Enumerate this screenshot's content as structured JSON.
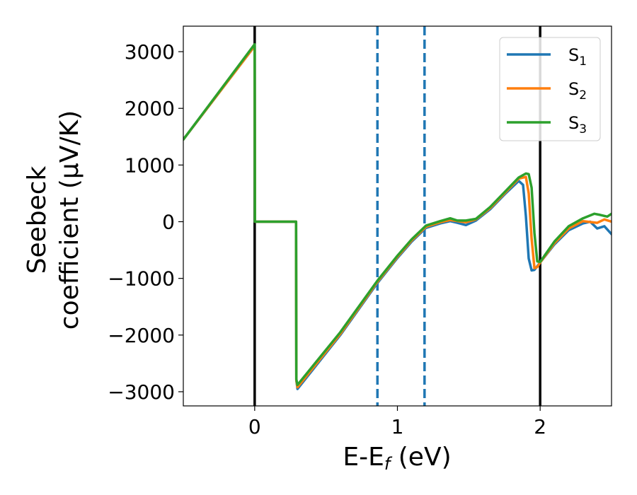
{
  "chart_data": {
    "type": "line",
    "xlabel": "E-E",
    "xlabel_sub": "f",
    "xlabel_unit": " (eV)",
    "ylabel_line1": "Seebeck",
    "ylabel_line2": "coefficient  (μV/K)",
    "xlim": [
      -0.5,
      2.5
    ],
    "ylim": [
      -3250,
      3450
    ],
    "xticks": [
      0,
      1,
      2
    ],
    "xtick_labels": [
      "0",
      "1",
      "2"
    ],
    "yticks": [
      3000,
      2000,
      1000,
      0,
      -1000,
      -2000,
      -3000
    ],
    "ytick_labels": [
      "3000",
      "2000",
      "1000",
      "0",
      "−1000",
      "−2000",
      "−3000"
    ],
    "vertical_lines": [
      {
        "x": 0,
        "style": "solid",
        "color": "#000000"
      },
      {
        "x": 2,
        "style": "solid",
        "color": "#000000"
      },
      {
        "x": 0.86,
        "style": "dashed",
        "color": "#1f77b4"
      },
      {
        "x": 1.19,
        "style": "dashed",
        "color": "#1f77b4"
      }
    ],
    "legend_position": "top-right",
    "series": [
      {
        "name": "S",
        "sub": "1",
        "color": "#1f77b4",
        "x": [
          -0.5,
          0.0,
          0.002,
          0.29,
          0.292,
          0.3,
          0.6,
          0.86,
          1.0,
          1.1,
          1.2,
          1.3,
          1.37,
          1.42,
          1.48,
          1.55,
          1.65,
          1.75,
          1.85,
          1.88,
          1.9,
          1.92,
          1.94,
          1.96,
          2.0,
          2.1,
          2.2,
          2.3,
          2.35,
          2.4,
          2.45,
          2.5
        ],
        "y": [
          1450,
          3100,
          0,
          0,
          -2800,
          -2950,
          -2000,
          -1080,
          -640,
          -350,
          -110,
          -30,
          10,
          -20,
          -60,
          20,
          220,
          480,
          720,
          650,
          100,
          -650,
          -860,
          -850,
          -720,
          -400,
          -150,
          -30,
          0,
          -120,
          -80,
          -220
        ]
      },
      {
        "name": "S",
        "sub": "2",
        "color": "#ff7f0e",
        "x": [
          -0.5,
          0.0,
          0.002,
          0.29,
          0.292,
          0.3,
          0.6,
          0.86,
          1.0,
          1.1,
          1.2,
          1.3,
          1.37,
          1.42,
          1.48,
          1.55,
          1.65,
          1.75,
          1.85,
          1.9,
          1.92,
          1.94,
          1.96,
          1.98,
          2.0,
          2.1,
          2.2,
          2.3,
          2.4,
          2.45,
          2.5
        ],
        "y": [
          1450,
          3100,
          0,
          0,
          -2800,
          -2920,
          -1980,
          -1060,
          -620,
          -330,
          -90,
          -10,
          30,
          10,
          -10,
          40,
          240,
          500,
          760,
          790,
          500,
          -300,
          -820,
          -800,
          -720,
          -380,
          -120,
          10,
          -20,
          40,
          0
        ]
      },
      {
        "name": "S",
        "sub": "3",
        "color": "#2ca02c",
        "x": [
          -0.5,
          0.0,
          0.002,
          0.29,
          0.292,
          0.3,
          0.6,
          0.86,
          1.0,
          1.1,
          1.2,
          1.3,
          1.37,
          1.42,
          1.48,
          1.55,
          1.65,
          1.75,
          1.85,
          1.9,
          1.92,
          1.94,
          1.96,
          1.98,
          2.0,
          2.1,
          2.2,
          2.3,
          2.38,
          2.42,
          2.47,
          2.5
        ],
        "y": [
          1450,
          3130,
          0,
          0,
          -2780,
          -2880,
          -1950,
          -1040,
          -600,
          -310,
          -70,
          10,
          60,
          20,
          20,
          50,
          260,
          520,
          780,
          850,
          840,
          600,
          -200,
          -700,
          -710,
          -350,
          -80,
          60,
          140,
          120,
          90,
          140
        ]
      }
    ]
  }
}
